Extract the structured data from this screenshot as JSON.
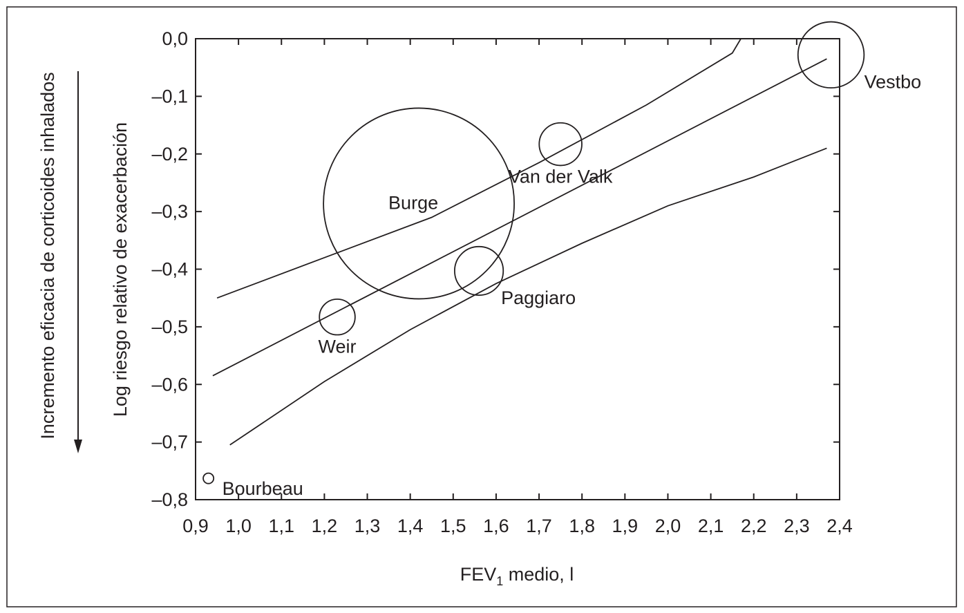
{
  "chart_data": {
    "type": "scatter",
    "title": "",
    "xlabel": "FEV",
    "xlabel_subscript": "1",
    "xlabel_suffix": " medio, l",
    "ylabel": "Log riesgo relativo de exacerbación",
    "annotation": "Incremento eficacia de corticoides inhalados",
    "xlim": [
      0.9,
      2.4
    ],
    "ylim": [
      -0.8,
      0.0
    ],
    "grid": false,
    "legend": "none",
    "x_ticks": [
      0.9,
      1.0,
      1.1,
      1.2,
      1.3,
      1.4,
      1.5,
      1.6,
      1.7,
      1.8,
      1.9,
      2.0,
      2.1,
      2.2,
      2.3,
      2.4
    ],
    "x_tick_labels": [
      "0,9",
      "1,0",
      "1,1",
      "1,2",
      "1,3",
      "1,4",
      "1,5",
      "1,6",
      "1,7",
      "1,8",
      "1,9",
      "2,0",
      "2,1",
      "2,2",
      "2,3",
      "2,4"
    ],
    "y_ticks": [
      0.0,
      -0.1,
      -0.2,
      -0.3,
      -0.4,
      -0.5,
      -0.6,
      -0.7,
      -0.8
    ],
    "y_tick_labels": [
      "0,0",
      "–0,1",
      "–0,2",
      "–0,3",
      "–0,4",
      "–0,5",
      "–0,6",
      "–0,7",
      "–0,8"
    ],
    "points": [
      {
        "label": "Bourbeau",
        "x": 0.93,
        "y": -0.763,
        "weight": 0.3
      },
      {
        "label": "Weir",
        "x": 1.23,
        "y": -0.483,
        "weight": 3.5
      },
      {
        "label": "Burge",
        "x": 1.42,
        "y": -0.286,
        "weight": 100
      },
      {
        "label": "Paggiaro",
        "x": 1.56,
        "y": -0.403,
        "weight": 6.5
      },
      {
        "label": "Van der Valk",
        "x": 1.75,
        "y": -0.183,
        "weight": 5
      },
      {
        "label": "Vestbo",
        "x": 2.38,
        "y": -0.028,
        "weight": 12
      }
    ],
    "regression": {
      "fit": [
        [
          0.94,
          -0.585
        ],
        [
          2.37,
          -0.035
        ]
      ],
      "upper": [
        [
          0.95,
          -0.45
        ],
        [
          1.2,
          -0.38
        ],
        [
          1.45,
          -0.31
        ],
        [
          1.7,
          -0.215
        ],
        [
          1.95,
          -0.115
        ],
        [
          2.15,
          -0.025
        ],
        [
          2.17,
          0.0
        ]
      ],
      "lower": [
        [
          0.98,
          -0.705
        ],
        [
          1.2,
          -0.595
        ],
        [
          1.4,
          -0.505
        ],
        [
          1.6,
          -0.425
        ],
        [
          1.8,
          -0.355
        ],
        [
          2.0,
          -0.29
        ],
        [
          2.2,
          -0.24
        ],
        [
          2.37,
          -0.19
        ]
      ]
    }
  }
}
